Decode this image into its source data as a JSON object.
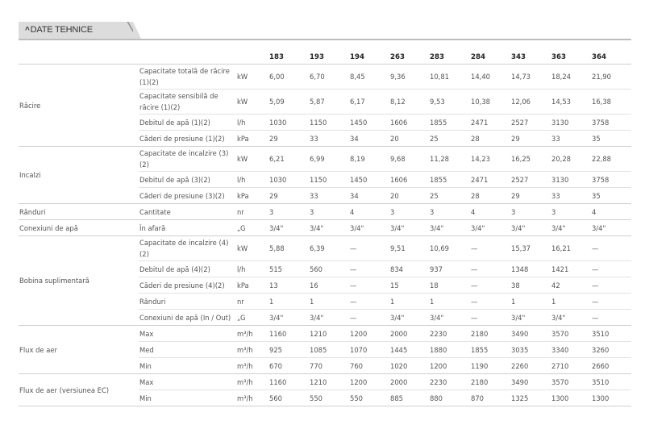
{
  "section": {
    "title": "DATE TEHNICE",
    "collapse_icon": "chevron-up-icon"
  },
  "columns": [
    "183",
    "193",
    "194",
    "263",
    "283",
    "284",
    "343",
    "363",
    "364"
  ],
  "groups": [
    {
      "label": "Răcire",
      "rows": [
        {
          "param": "Capacitate totală de răcire (1)(2)",
          "unit": "kW",
          "values": [
            "6,00",
            "6,70",
            "8,45",
            "9,36",
            "10,81",
            "14,40",
            "14,73",
            "18,24",
            "21,90"
          ]
        },
        {
          "param": "Capacitate sensibilă de răcire (1)(2)",
          "unit": "kW",
          "values": [
            "5,09",
            "5,87",
            "6,17",
            "8,12",
            "9,53",
            "10,38",
            "12,06",
            "14,53",
            "16,38"
          ]
        },
        {
          "param": "Debitul de apă (1)(2)",
          "unit": "l/h",
          "values": [
            "1030",
            "1150",
            "1450",
            "1606",
            "1855",
            "2471",
            "2527",
            "3130",
            "3758"
          ]
        },
        {
          "param": "Căderi de presiune (1)(2)",
          "unit": "kPa",
          "values": [
            "29",
            "33",
            "34",
            "20",
            "25",
            "28",
            "29",
            "33",
            "35"
          ]
        }
      ]
    },
    {
      "label": "Incalzi",
      "rows": [
        {
          "param": "Capacitate de incalzire (3) (2)",
          "unit": "kW",
          "values": [
            "6,21",
            "6,99",
            "8,19",
            "9,68",
            "11,28",
            "14,23",
            "16,25",
            "20,28",
            "22,88"
          ]
        },
        {
          "param": "Debitul de apă (3)(2)",
          "unit": "l/h",
          "values": [
            "1030",
            "1150",
            "1450",
            "1606",
            "1855",
            "2471",
            "2527",
            "3130",
            "3758"
          ]
        },
        {
          "param": "Căderi de presiune (3)(2)",
          "unit": "kPa",
          "values": [
            "29",
            "33",
            "34",
            "20",
            "25",
            "28",
            "29",
            "33",
            "35"
          ]
        }
      ]
    },
    {
      "label": "Rânduri",
      "rows": [
        {
          "param": "Cantitate",
          "unit": "nr",
          "values": [
            "3",
            "3",
            "4",
            "3",
            "3",
            "4",
            "3",
            "3",
            "4"
          ]
        }
      ]
    },
    {
      "label": "Conexiuni de apă",
      "rows": [
        {
          "param": "În afară",
          "unit": "„G",
          "values": [
            "3/4\"",
            "3/4\"",
            "3/4\"",
            "3/4\"",
            "3/4\"",
            "3/4\"",
            "3/4\"",
            "3/4\"",
            "3/4\""
          ]
        }
      ]
    },
    {
      "label": "Bobina suplimentară",
      "rows": [
        {
          "param": "Capacitate de incalzire (4) (2)",
          "unit": "kW",
          "values": [
            "5,88",
            "6,39",
            "—",
            "9,51",
            "10,69",
            "—",
            "15,37",
            "16,21",
            "—"
          ]
        },
        {
          "param": "Debitul de apă (4)(2)",
          "unit": "l/h",
          "values": [
            "515",
            "560",
            "—",
            "834",
            "937",
            "—",
            "1348",
            "1421",
            "—"
          ]
        },
        {
          "param": "Căderi de presiune (4)(2)",
          "unit": "kPa",
          "values": [
            "13",
            "16",
            "—",
            "15",
            "18",
            "—",
            "38",
            "42",
            "—"
          ]
        },
        {
          "param": "Rânduri",
          "unit": "nr",
          "values": [
            "1",
            "1",
            "—",
            "1",
            "1",
            "—",
            "1",
            "1",
            "—"
          ]
        },
        {
          "param": "Conexiuni de apă (In / Out)",
          "unit": "„G",
          "values": [
            "3/4\"",
            "3/4\"",
            "—",
            "3/4\"",
            "3/4\"",
            "—",
            "3/4\"",
            "3/4\"",
            "—"
          ]
        }
      ]
    },
    {
      "label": "Flux de aer",
      "rows": [
        {
          "param": "Max",
          "unit": "m³/h",
          "values": [
            "1160",
            "1210",
            "1200",
            "2000",
            "2230",
            "2180",
            "3490",
            "3570",
            "3510"
          ]
        },
        {
          "param": "Med",
          "unit": "m³/h",
          "values": [
            "925",
            "1085",
            "1070",
            "1445",
            "1880",
            "1855",
            "3035",
            "3340",
            "3260"
          ]
        },
        {
          "param": "Min",
          "unit": "m³/h",
          "values": [
            "670",
            "770",
            "760",
            "1020",
            "1200",
            "1190",
            "2260",
            "2710",
            "2660"
          ]
        }
      ]
    },
    {
      "label": "Flux de aer (versiunea EC)",
      "rows": [
        {
          "param": "Max",
          "unit": "m³/h",
          "values": [
            "1160",
            "1210",
            "1200",
            "2000",
            "2230",
            "2180",
            "3490",
            "3570",
            "3510"
          ]
        },
        {
          "param": "Min",
          "unit": "m³/h",
          "values": [
            "560",
            "550",
            "550",
            "885",
            "880",
            "870",
            "1325",
            "1300",
            "1300"
          ]
        }
      ]
    }
  ]
}
